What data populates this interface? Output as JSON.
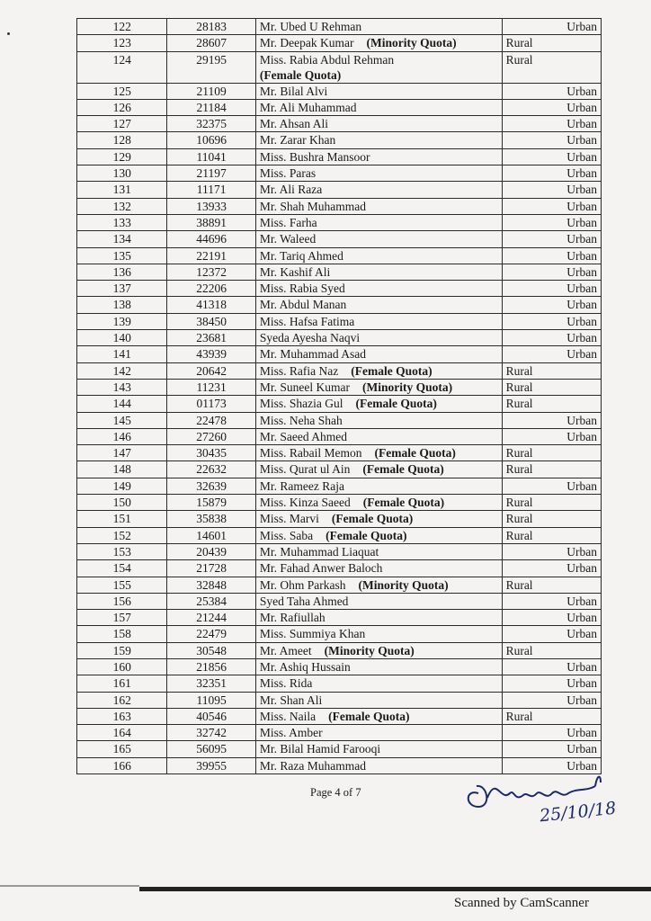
{
  "rows": [
    [
      "122",
      "28183",
      "Mr. Ubed U Rehman",
      "",
      "",
      "Urban"
    ],
    [
      "123",
      "28607",
      "Mr. Deepak Kumar",
      "(Minority Quota)",
      "Rural",
      ""
    ],
    [
      "124",
      "29195",
      "Miss. Rabia Abdul Rehman",
      "(Female Quota)",
      "Rural",
      ""
    ],
    [
      "125",
      "21109",
      "Mr. Bilal Alvi",
      "",
      "",
      "Urban"
    ],
    [
      "126",
      "21184",
      "Mr. Ali Muhammad",
      "",
      "",
      "Urban"
    ],
    [
      "127",
      "32375",
      "Mr. Ahsan Ali",
      "",
      "",
      "Urban"
    ],
    [
      "128",
      "10696",
      "Mr. Zarar Khan",
      "",
      "",
      "Urban"
    ],
    [
      "129",
      "11041",
      "Miss. Bushra Mansoor",
      "",
      "",
      "Urban"
    ],
    [
      "130",
      "21197",
      "Miss. Paras",
      "",
      "",
      "Urban"
    ],
    [
      "131",
      "11171",
      "Mr. Ali Raza",
      "",
      "",
      "Urban"
    ],
    [
      "132",
      "13933",
      "Mr. Shah Muhammad",
      "",
      "",
      "Urban"
    ],
    [
      "133",
      "38891",
      "Miss. Farha",
      "",
      "",
      "Urban"
    ],
    [
      "134",
      "44696",
      "Mr. Waleed",
      "",
      "",
      "Urban"
    ],
    [
      "135",
      "22191",
      "Mr. Tariq Ahmed",
      "",
      "",
      "Urban"
    ],
    [
      "136",
      "12372",
      "Mr. Kashif Ali",
      "",
      "",
      "Urban"
    ],
    [
      "137",
      "22206",
      "Miss. Rabia Syed",
      "",
      "",
      "Urban"
    ],
    [
      "138",
      "41318",
      "Mr. Abdul Manan",
      "",
      "",
      "Urban"
    ],
    [
      "139",
      "38450",
      "Miss. Hafsa Fatima",
      "",
      "",
      "Urban"
    ],
    [
      "140",
      "23681",
      "Syeda Ayesha Naqvi",
      "",
      "",
      "Urban"
    ],
    [
      "141",
      "43939",
      "Mr. Muhammad Asad",
      "",
      "",
      "Urban"
    ],
    [
      "142",
      "20642",
      "Miss. Rafia Naz",
      "(Female Quota)",
      "Rural",
      ""
    ],
    [
      "143",
      "11231",
      "Mr. Suneel Kumar",
      "(Minority Quota)",
      "Rural",
      ""
    ],
    [
      "144",
      "01173",
      "Miss. Shazia Gul",
      "(Female Quota)",
      "Rural",
      ""
    ],
    [
      "145",
      "22478",
      "Miss. Neha Shah",
      "",
      "",
      "Urban"
    ],
    [
      "146",
      "27260",
      "Mr. Saeed Ahmed",
      "",
      "",
      "Urban"
    ],
    [
      "147",
      "30435",
      "Miss. Rabail Memon",
      "(Female Quota)",
      "Rural",
      ""
    ],
    [
      "148",
      "22632",
      "Miss. Qurat ul Ain",
      "(Female Quota)",
      "Rural",
      ""
    ],
    [
      "149",
      "32639",
      "Mr. Rameez Raja",
      "",
      "",
      "Urban"
    ],
    [
      "150",
      "15879",
      "Miss. Kinza Saeed",
      "(Female Quota)",
      "Rural",
      ""
    ],
    [
      "151",
      "35838",
      "Miss. Marvi",
      "(Female Quota)",
      "Rural",
      ""
    ],
    [
      "152",
      "14601",
      "Miss. Saba",
      "(Female Quota)",
      "Rural",
      ""
    ],
    [
      "153",
      "20439",
      "Mr. Muhammad Liaquat",
      "",
      "",
      "Urban"
    ],
    [
      "154",
      "21728",
      "Mr. Fahad Anwer Baloch",
      "",
      "",
      "Urban"
    ],
    [
      "155",
      "32848",
      "Mr. Ohm Parkash",
      "(Minority Quota)",
      "Rural",
      ""
    ],
    [
      "156",
      "25384",
      "Syed Taha Ahmed",
      "",
      "",
      "Urban"
    ],
    [
      "157",
      "21244",
      "Mr. Rafiullah",
      "",
      "",
      "Urban"
    ],
    [
      "158",
      "22479",
      "Miss. Summiya Khan",
      "",
      "",
      "Urban"
    ],
    [
      "159",
      "30548",
      "Mr. Ameet",
      "(Minority Quota)",
      "Rural",
      ""
    ],
    [
      "160",
      "21856",
      "Mr. Ashiq Hussain",
      "",
      "",
      "Urban"
    ],
    [
      "161",
      "32351",
      "Miss. Rida",
      "",
      "",
      "Urban"
    ],
    [
      "162",
      "11095",
      "Mr. Shan Ali",
      "",
      "",
      "Urban"
    ],
    [
      "163",
      "40546",
      "Miss. Naila",
      "(Female Quota)",
      "Rural",
      ""
    ],
    [
      "164",
      "32742",
      "Miss. Amber",
      "",
      "",
      "Urban"
    ],
    [
      "165",
      "56095",
      "Mr. Bilal Hamid Farooqi",
      "",
      "",
      "Urban"
    ],
    [
      "166",
      "39955",
      "Mr. Raza Muhammad",
      "",
      "",
      "Urban"
    ]
  ],
  "footer": {
    "page": "Page 4 of 7"
  },
  "signature": {
    "date": "25/10/18"
  },
  "watermark": "Scanned by CamScanner"
}
